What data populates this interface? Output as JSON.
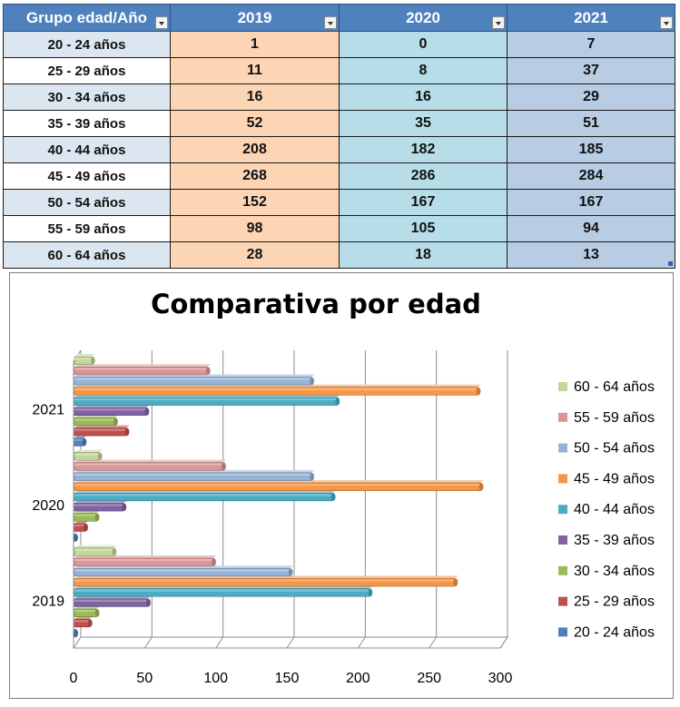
{
  "table": {
    "headers": [
      "Grupo edad/Año",
      "2019",
      "2020",
      "2021"
    ],
    "rows": [
      {
        "group": "20 - 24 años",
        "v2019": "1",
        "v2020": "0",
        "v2021": "7"
      },
      {
        "group": "25 - 29 años",
        "v2019": "11",
        "v2020": "8",
        "v2021": "37"
      },
      {
        "group": "30 - 34 años",
        "v2019": "16",
        "v2020": "16",
        "v2021": "29"
      },
      {
        "group": "35 - 39 años",
        "v2019": "52",
        "v2020": "35",
        "v2021": "51"
      },
      {
        "group": "40 - 44 años",
        "v2019": "208",
        "v2020": "182",
        "v2021": "185"
      },
      {
        "group": "45 - 49 años",
        "v2019": "268",
        "v2020": "286",
        "v2021": "284"
      },
      {
        "group": "50 - 54 años",
        "v2019": "152",
        "v2020": "167",
        "v2021": "167"
      },
      {
        "group": "55 - 59 años",
        "v2019": "98",
        "v2020": "105",
        "v2021": "94"
      },
      {
        "group": "60 - 64 años",
        "v2019": "28",
        "v2020": "18",
        "v2021": "13"
      }
    ],
    "colors": {
      "header": "#4f81bd",
      "col2019": "#fcd5b4",
      "col2020": "#b7dee8",
      "col2021": "#b8cce4",
      "group_alt": "#dce6f1"
    }
  },
  "chart_data": {
    "type": "bar",
    "orientation": "horizontal",
    "style": "3d-clustered-bar",
    "title": "Comparativa por edad",
    "categories": [
      "2019",
      "2020",
      "2021"
    ],
    "xlim": [
      0,
      300
    ],
    "xticks": [
      0,
      50,
      100,
      150,
      200,
      250,
      300
    ],
    "grid": true,
    "legend_position": "right",
    "series": [
      {
        "name": "20 - 24 años",
        "color": "#4f81bd",
        "values": [
          1,
          0,
          7
        ]
      },
      {
        "name": "25 - 29 años",
        "color": "#c0504d",
        "values": [
          11,
          8,
          37
        ]
      },
      {
        "name": "30 - 34 años",
        "color": "#9bbb59",
        "values": [
          16,
          16,
          29
        ]
      },
      {
        "name": "35 - 39 años",
        "color": "#8064a2",
        "values": [
          52,
          35,
          51
        ]
      },
      {
        "name": "40 - 44 años",
        "color": "#4bacc6",
        "values": [
          208,
          182,
          185
        ]
      },
      {
        "name": "45 - 49 años",
        "color": "#f79646",
        "values": [
          268,
          286,
          284
        ]
      },
      {
        "name": "50 - 54 años",
        "color": "#95b3d7",
        "values": [
          152,
          167,
          167
        ]
      },
      {
        "name": "55 - 59 años",
        "color": "#da9694",
        "values": [
          98,
          105,
          94
        ]
      },
      {
        "name": "60 - 64 años",
        "color": "#c4d79b",
        "values": [
          28,
          18,
          13
        ]
      }
    ]
  }
}
